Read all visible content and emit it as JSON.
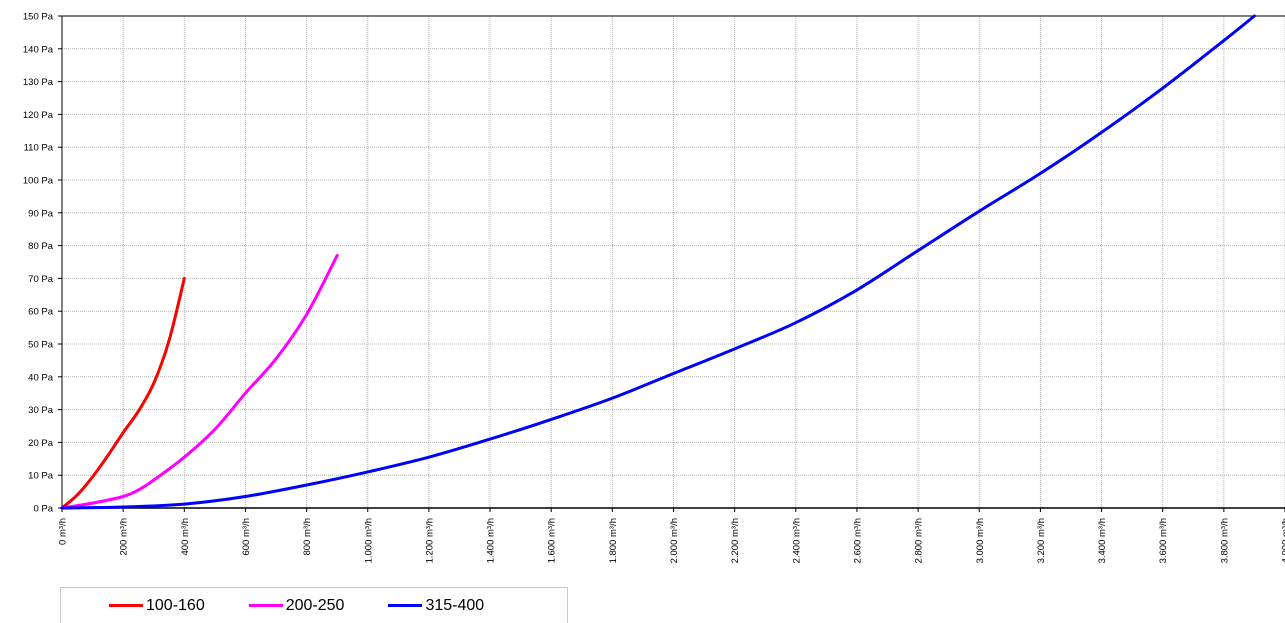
{
  "chart_data": {
    "type": "line",
    "title": "",
    "xlabel": "",
    "ylabel": "",
    "xlim": [
      0,
      4000
    ],
    "ylim": [
      0,
      150
    ],
    "grid": true,
    "legend_position": "bottom-left",
    "x_ticks": [
      0,
      200,
      400,
      600,
      800,
      1000,
      1200,
      1400,
      1600,
      1800,
      2000,
      2200,
      2400,
      2600,
      2800,
      3000,
      3200,
      3400,
      3600,
      3800,
      4000
    ],
    "x_tick_labels": [
      "0 m³/h",
      "200 m³/h",
      "400 m³/h",
      "600 m³/h",
      "800 m³/h",
      "1.000 m³/h",
      "1.200 m³/h",
      "1.400 m³/h",
      "1.600 m³/h",
      "1.800 m³/h",
      "2.000 m³/h",
      "2.200 m³/h",
      "2.400 m³/h",
      "2.600 m³/h",
      "2.800 m³/h",
      "3.000 m³/h",
      "3.200 m³/h",
      "3.400 m³/h",
      "3.600 m³/h",
      "3.800 m³/h",
      "4.000 m³/h"
    ],
    "y_ticks": [
      0,
      10,
      20,
      30,
      40,
      50,
      60,
      70,
      80,
      90,
      100,
      110,
      120,
      130,
      140,
      150
    ],
    "y_tick_labels": [
      "0 Pa",
      "10 Pa",
      "20 Pa",
      "30 Pa",
      "40 Pa",
      "50 Pa",
      "60 Pa",
      "70 Pa",
      "80 Pa",
      "90 Pa",
      "100 Pa",
      "110 Pa",
      "120 Pa",
      "130 Pa",
      "140 Pa",
      "150 Pa"
    ],
    "series": [
      {
        "name": "100-160",
        "color": "#ff0000",
        "x": [
          0,
          50,
          100,
          150,
          200,
          250,
          300,
          350,
          400
        ],
        "y": [
          0,
          4,
          9.5,
          16,
          23,
          29.5,
          38,
          51,
          70
        ]
      },
      {
        "name": "200-250",
        "color": "#ff00ff",
        "x": [
          0,
          100,
          200,
          250,
          300,
          400,
          500,
          600,
          700,
          800,
          900
        ],
        "y": [
          0,
          1.5,
          3.5,
          5.5,
          8.5,
          15.5,
          24,
          35,
          45.5,
          59,
          77
        ]
      },
      {
        "name": "315-400",
        "color": "#0000ff",
        "x": [
          0,
          200,
          400,
          600,
          800,
          1000,
          1200,
          1400,
          1600,
          1800,
          2000,
          2200,
          2400,
          2600,
          2800,
          3000,
          3200,
          3400,
          3600,
          3800,
          3900
        ],
        "y": [
          0,
          0.3,
          1.2,
          3.5,
          7,
          11,
          15.5,
          21,
          27,
          33.5,
          41,
          48.5,
          56.5,
          66.5,
          78.5,
          90.5,
          102,
          114.5,
          128,
          142.5,
          150
        ]
      }
    ]
  }
}
